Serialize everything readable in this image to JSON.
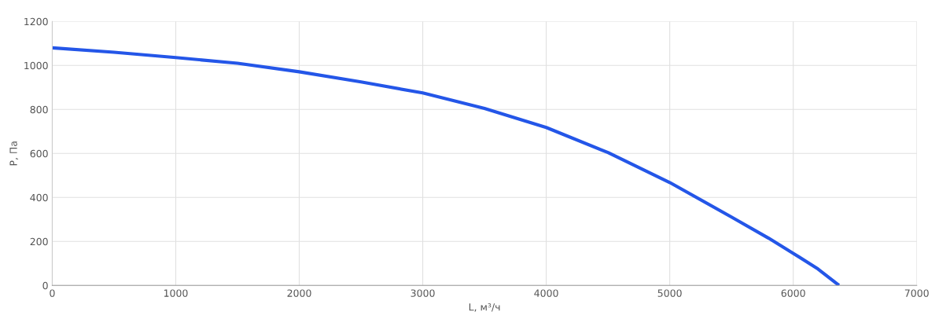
{
  "chart_data": {
    "type": "line",
    "xlabel": "L, м³/ч",
    "ylabel": "P, Па",
    "xlim": [
      0,
      7000
    ],
    "ylim": [
      0,
      1200
    ],
    "xticks": [
      0,
      1000,
      2000,
      3000,
      4000,
      5000,
      6000,
      7000
    ],
    "yticks": [
      0,
      200,
      400,
      600,
      800,
      1000,
      1200
    ],
    "grid": true,
    "marker": "none",
    "line_style": "solid",
    "series": [
      {
        "color": "#2456e8",
        "x": [
          0,
          500,
          1000,
          1500,
          2000,
          2500,
          3000,
          3500,
          4000,
          4500,
          5000,
          5500,
          5800,
          6000,
          6200,
          6360
        ],
        "values": [
          1080,
          1060,
          1036,
          1010,
          971,
          925,
          875,
          805,
          718,
          604,
          468,
          311,
          215,
          146,
          75,
          5
        ]
      }
    ]
  }
}
